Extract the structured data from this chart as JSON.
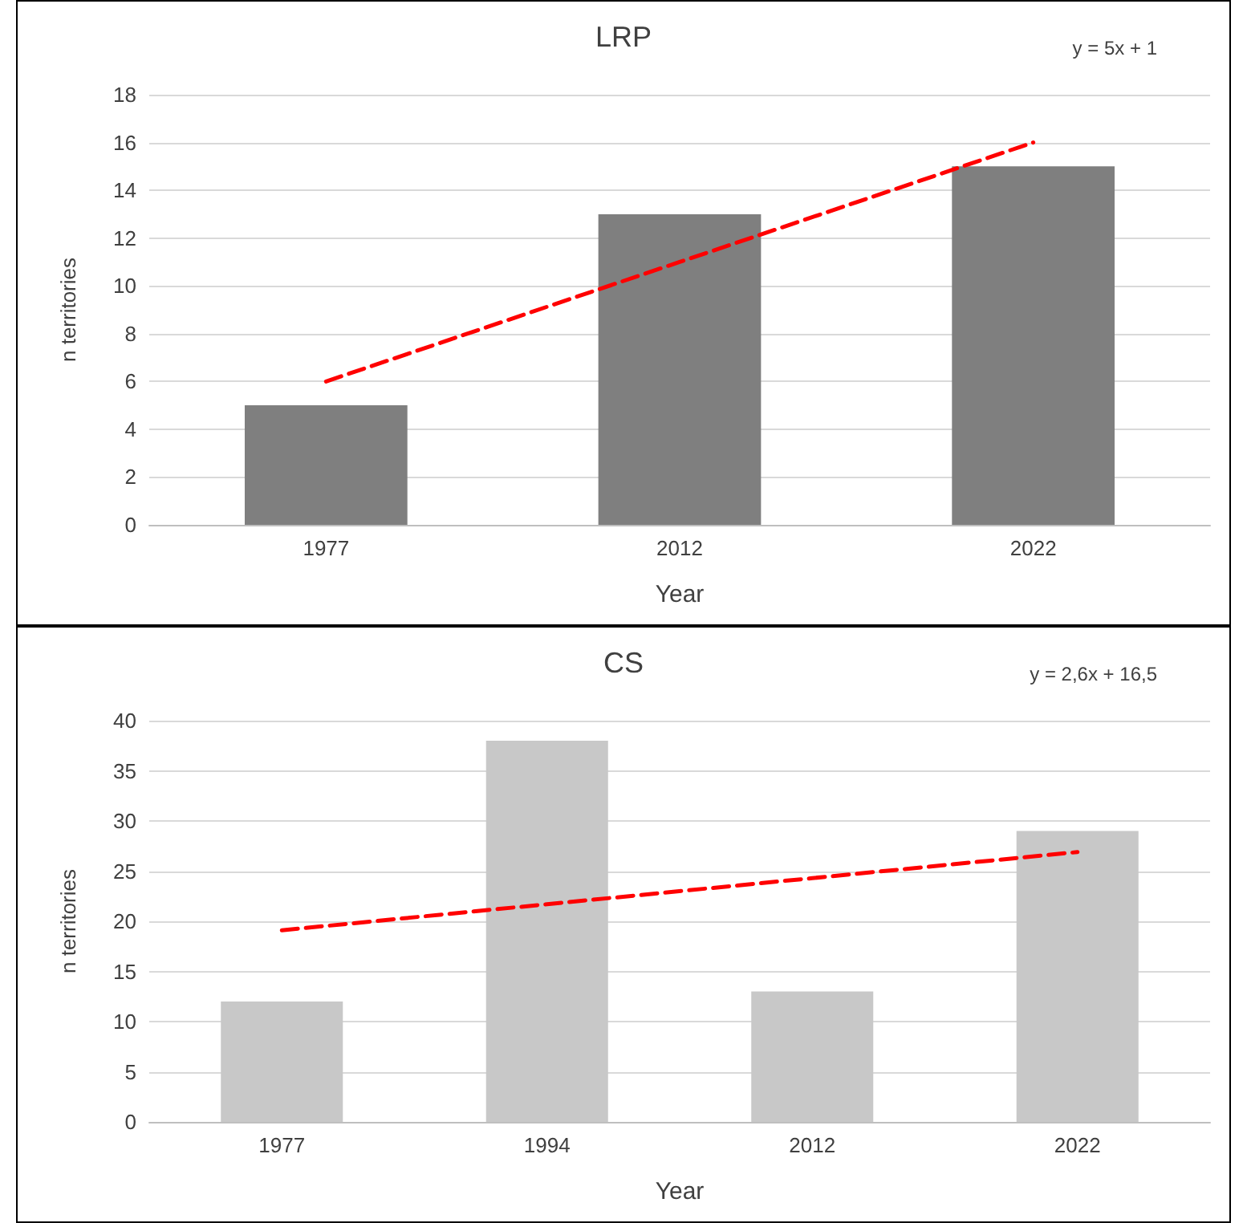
{
  "chart_data": [
    {
      "type": "bar",
      "title": "LRP",
      "xlabel": "Year",
      "ylabel": "n territories",
      "annotations": [
        "y = 5x + 1"
      ],
      "categories": [
        "1977",
        "2012",
        "2022"
      ],
      "series": [
        {
          "color": "#7f7f7f",
          "values": [
            5,
            13,
            15
          ]
        },
        {
          "type": "line",
          "color": "#ff0000",
          "line_style": "dashed",
          "marker": "none",
          "values": [
            6,
            11,
            16
          ]
        }
      ],
      "ylim": [
        0,
        18
      ],
      "yticks": [
        0,
        2,
        4,
        6,
        8,
        10,
        12,
        14,
        16,
        18
      ],
      "grid": "y"
    },
    {
      "type": "bar",
      "title": "CS",
      "xlabel": "Year",
      "ylabel": "n territories",
      "annotations": [
        "y = 2,6x + 16,5"
      ],
      "categories": [
        "1977",
        "1994",
        "2012",
        "2022"
      ],
      "series": [
        {
          "color": "#c8c8c8",
          "values": [
            12,
            38,
            13,
            29
          ]
        },
        {
          "type": "line",
          "color": "#ff0000",
          "line_style": "dashed",
          "marker": "none",
          "values": [
            19.1,
            21.7,
            24.3,
            26.9
          ]
        }
      ],
      "ylim": [
        0,
        40
      ],
      "yticks": [
        0,
        5,
        10,
        15,
        20,
        25,
        30,
        35,
        40
      ],
      "grid": "y"
    }
  ]
}
